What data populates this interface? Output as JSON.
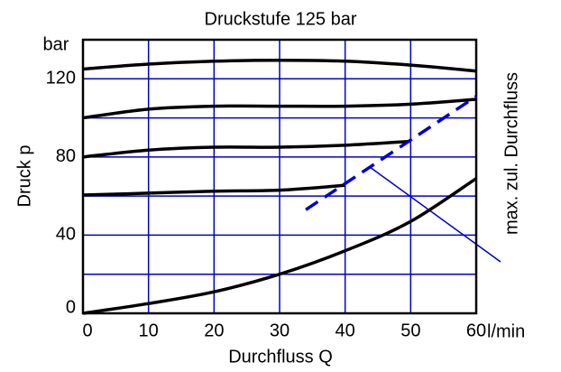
{
  "chart_data": {
    "type": "line",
    "title": "Druckstufe 125 bar",
    "x_label": "Durchfluss Q",
    "y_label": "Druck p",
    "x_unit": "l/min",
    "y_unit": "bar",
    "annotation": "max. zul. Durchfluss",
    "x": [
      0,
      10,
      20,
      30,
      40,
      50,
      60
    ],
    "series": [
      {
        "color": "#000000",
        "values": [
          125,
          127.5,
          129,
          129.5,
          129,
          127,
          124
        ]
      },
      {
        "color": "#000000",
        "values": [
          100,
          104.5,
          106,
          106,
          106,
          107,
          109.5
        ]
      },
      {
        "color": "#000000",
        "values": [
          80,
          83.5,
          85,
          85,
          86,
          88,
          null
        ]
      },
      {
        "color": "#000000",
        "values": [
          60.5,
          61.5,
          62.5,
          63,
          65.5,
          null,
          null
        ]
      },
      {
        "color": "#000000",
        "values": [
          0,
          5,
          11,
          20,
          32,
          47,
          69
        ]
      }
    ],
    "limit_line": {
      "color": "#0000cc",
      "x": [
        34,
        60
      ],
      "values": [
        53,
        111
      ]
    },
    "xlim": [
      0,
      60
    ],
    "ylim": [
      0,
      140
    ],
    "xticks": [
      0,
      10,
      20,
      30,
      40,
      50,
      60
    ],
    "yticks": [
      0,
      40,
      80,
      120
    ],
    "y_minor_ticks": [
      20,
      60,
      100,
      140
    ],
    "grid": true,
    "grid_color": "#0000cc"
  }
}
